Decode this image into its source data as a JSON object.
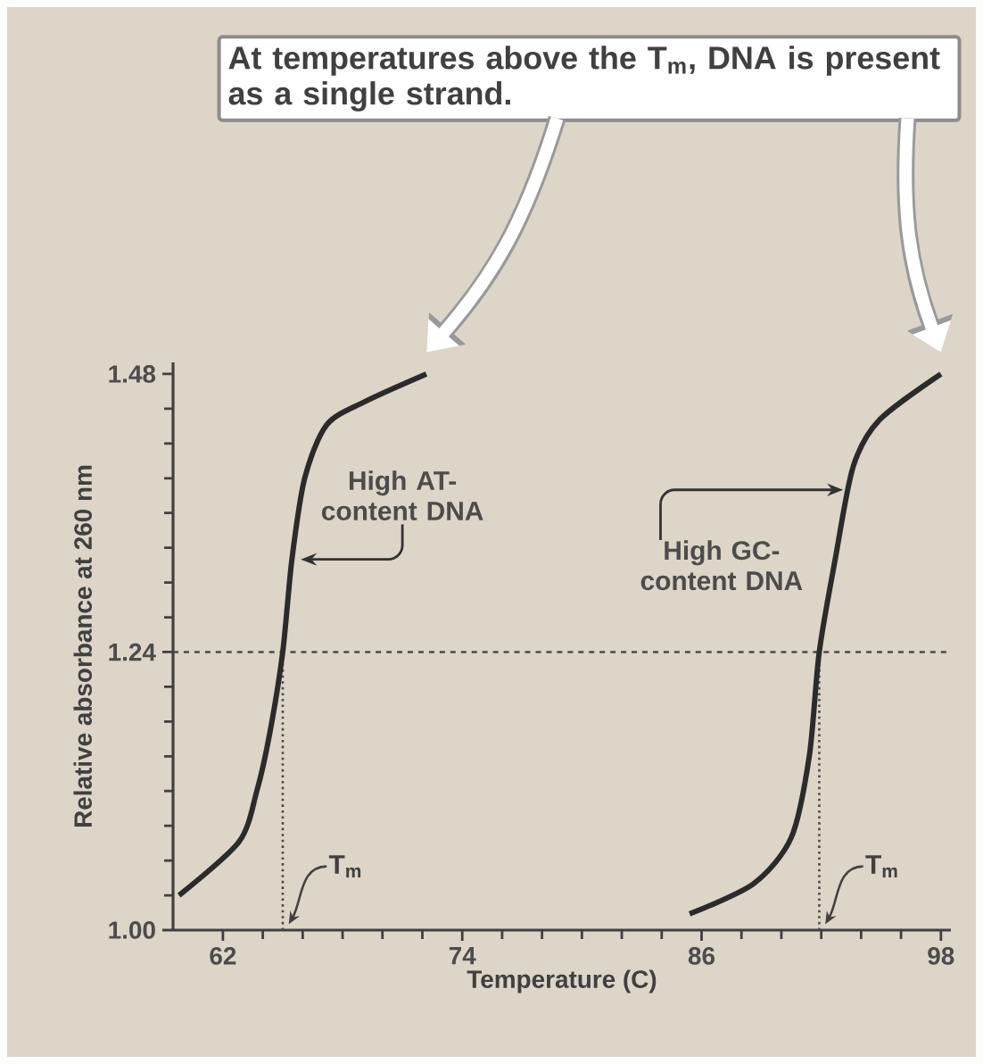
{
  "chart_data": {
    "type": "line",
    "xlabel": "Temperature (C)",
    "ylabel": "Relative absorbance at 260 nm",
    "xlim": [
      59.5,
      98.5
    ],
    "ylim": [
      1.0,
      1.49
    ],
    "xticks": [
      62,
      74,
      86,
      98
    ],
    "yticks": [
      {
        "value": 1.0,
        "label": "1.00"
      },
      1.24,
      1.48
    ],
    "marker": "none",
    "line_style": "solid",
    "series": [
      {
        "color": "#2b2b2b",
        "x": [
          59.8,
          62.8,
          63.7,
          64.35,
          65.0,
          65.46,
          66.1,
          67.2,
          69.1,
          72.2
        ],
        "values": [
          1.03,
          1.076,
          1.12,
          1.17,
          1.24,
          1.32,
          1.39,
          1.436,
          1.456,
          1.48
        ]
      },
      {
        "color": "#2b2b2b",
        "x": [
          85.4,
          88.6,
          90.5,
          91.4,
          91.9,
          92.7,
          93.6,
          94.9,
          98.0
        ],
        "values": [
          1.014,
          1.04,
          1.08,
          1.15,
          1.24,
          1.32,
          1.4,
          1.44,
          1.48
        ]
      }
    ],
    "ref_lines": [
      {
        "axis": "y",
        "value": 1.24,
        "line_style": "dashed",
        "color": "#4a4a4a"
      },
      {
        "axis": "x",
        "value": 65.0,
        "label": "T$_{m}$",
        "line_style": "dotted",
        "color": "#4a4a4a"
      },
      {
        "axis": "x",
        "value": 91.9,
        "label": "T$_{m}$",
        "line_style": "dotted",
        "color": "#4a4a4a"
      }
    ],
    "annotations": [
      "At temperatures above the T$_{m}$, DNA is present as a single strand.",
      {
        "text": "High AT-content DNA",
        "x": 65.5,
        "y": 1.32
      },
      {
        "text": "High GC-content DNA",
        "x": 93.5,
        "y": 1.38
      }
    ]
  }
}
